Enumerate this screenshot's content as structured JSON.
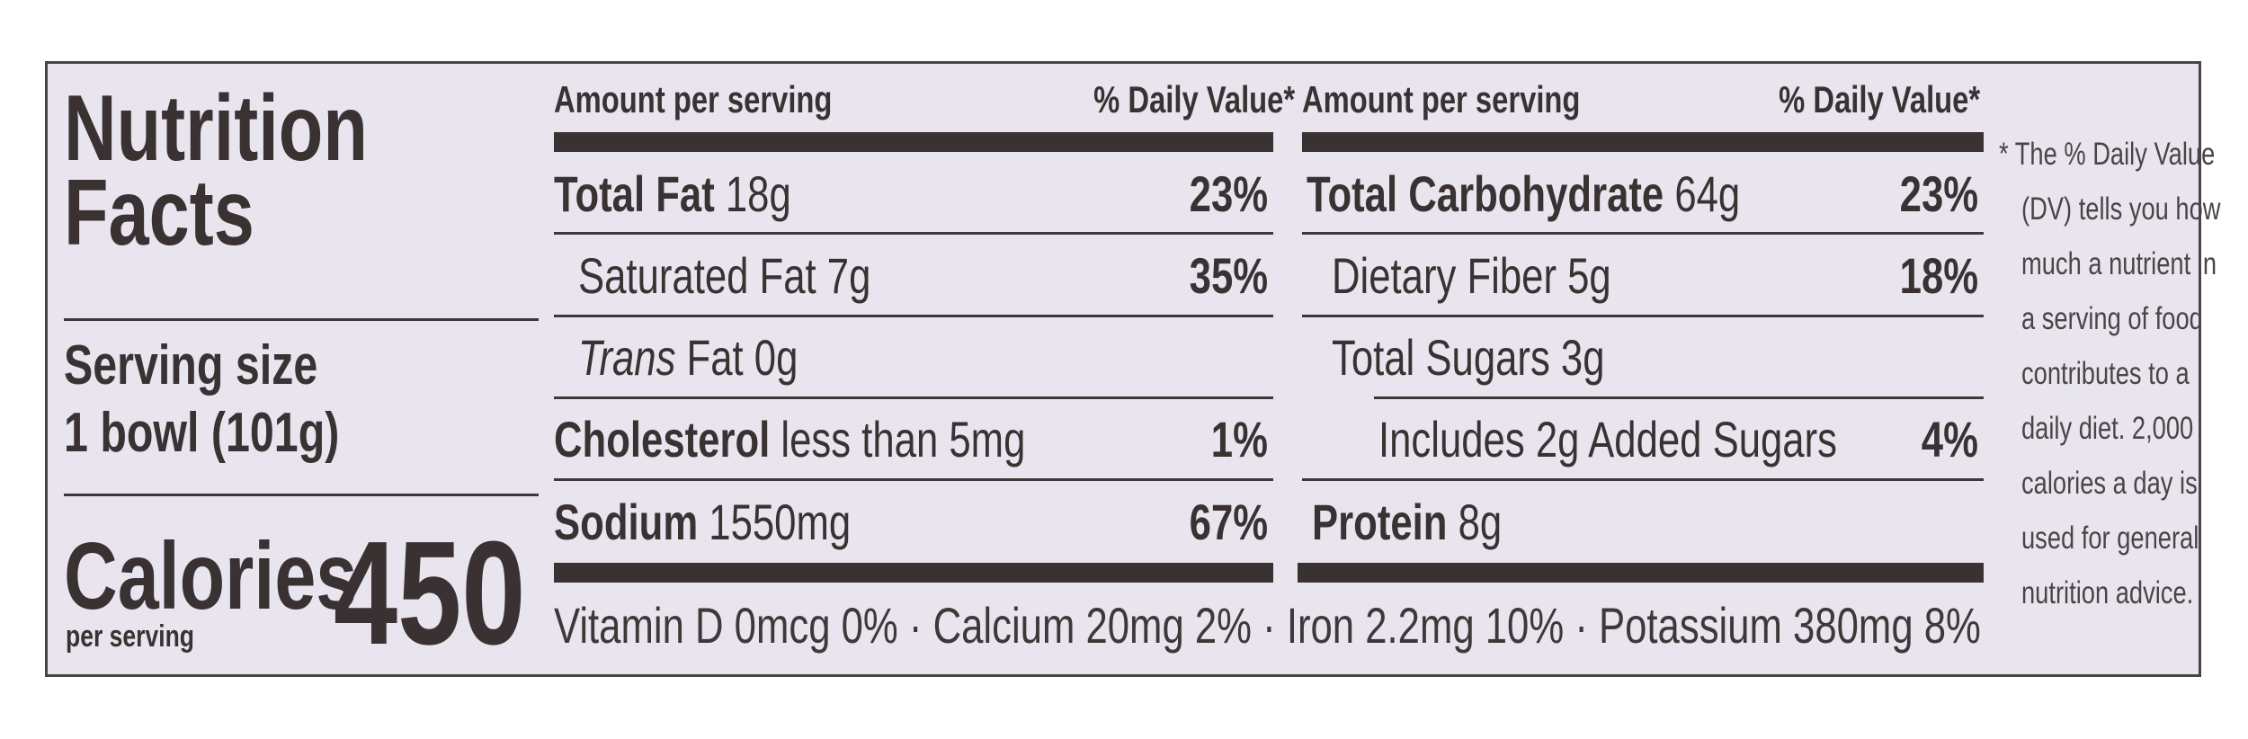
{
  "title": {
    "line1": "Nutrition",
    "line2": "Facts"
  },
  "serving": {
    "label": "Serving size",
    "value": "1 bowl (101g)"
  },
  "calories": {
    "label": "Calories",
    "sub": "per serving",
    "value": "450"
  },
  "header": {
    "amount": "Amount per serving",
    "dv": "% Daily Value*"
  },
  "left_rows": [
    {
      "bold": "Total Fat",
      "text": " 18g",
      "dv": "23%"
    },
    {
      "bold": "",
      "text": "Saturated Fat 7g",
      "dv": "35%"
    },
    {
      "italic": "Trans",
      "text": " Fat 0g",
      "dv": ""
    },
    {
      "bold": "Cholesterol",
      "text": " less than 5mg",
      "dv": "1%"
    },
    {
      "bold": "Sodium",
      "text": " 1550mg",
      "dv": "67%"
    }
  ],
  "right_rows": [
    {
      "bold": "Total Carbohydrate",
      "text": " 64g",
      "dv": "23%"
    },
    {
      "bold": "",
      "text": "Dietary Fiber 5g",
      "dv": "18%"
    },
    {
      "bold": "",
      "text": "Total Sugars 3g",
      "dv": ""
    },
    {
      "bold": "",
      "text": "Includes 2g Added Sugars",
      "dv": "4%"
    },
    {
      "bold": "Protein",
      "text": " 8g",
      "dv": ""
    }
  ],
  "vitamins": "Vitamin D 0mcg 0% · Calcium 20mg 2% · Iron 2.2mg 10% · Potassium 380mg 8%",
  "footnote": [
    "* The % Daily Value",
    "(DV) tells you how",
    "much a nutrient in",
    "a serving of food",
    "contributes to a",
    "daily diet. 2,000",
    "calories a day is",
    "used for general",
    "nutrition advice."
  ]
}
